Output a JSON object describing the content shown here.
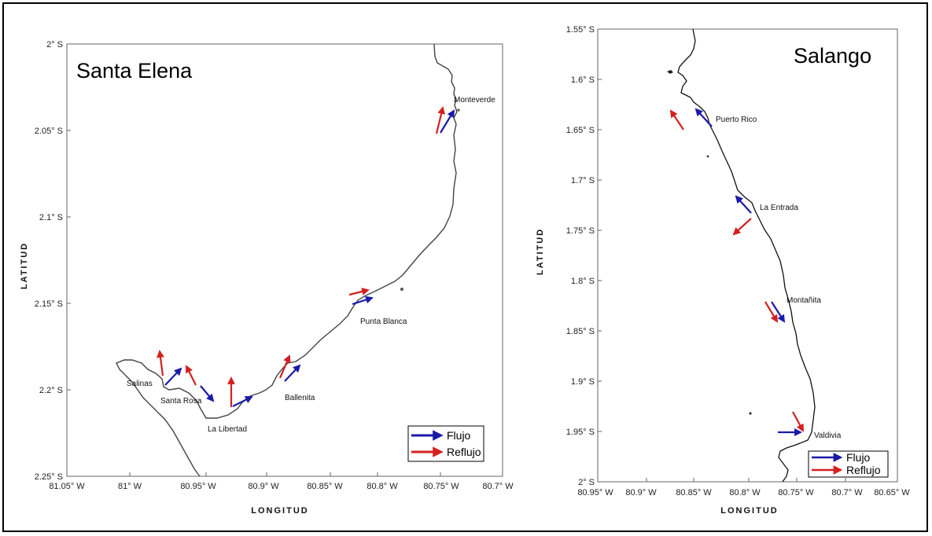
{
  "maps": [
    {
      "title": "Santa Elena",
      "xlabel": "LONGITUD",
      "ylabel": "LATITUD",
      "xticks": [
        "81.05° W",
        "81° W",
        "80.95° W",
        "80.9° W",
        "80.85° W",
        "80.8° W",
        "80.75° W",
        "80.7° W"
      ],
      "yticks": [
        "2° S",
        "2.05° S",
        "2.1° S",
        "2.15° S",
        "2.2° S",
        "2.25° S"
      ],
      "places": [
        "Monteverde",
        "Punta Blanca",
        "Ballenita",
        "La Libertad",
        "Santa Rosa",
        "Salinas"
      ],
      "legend": {
        "flow": "Flujo",
        "ebb": "Reflujo"
      }
    },
    {
      "title": "Salango",
      "xlabel": "LONGITUD",
      "ylabel": "LATITUD",
      "xticks": [
        "80.95° W",
        "80.9° W",
        "80.85° W",
        "80.8° W",
        "80.75° W",
        "80.7° W",
        "80.65° W"
      ],
      "yticks": [
        "1.55° S",
        "1.6° S",
        "1.65° S",
        "1.7° S",
        "1.75° S",
        "1.8° S",
        "1.85° S",
        "1.9° S",
        "1.95° S",
        "2° S"
      ],
      "places": [
        "Puerto Rico",
        "La Entrada",
        "Montañita",
        "Valdivia"
      ],
      "legend": {
        "flow": "Flujo",
        "ebb": "Reflujo"
      }
    }
  ],
  "colors": {
    "flow": "#1a1aa8",
    "ebb": "#d42020",
    "coast": "#333333"
  }
}
